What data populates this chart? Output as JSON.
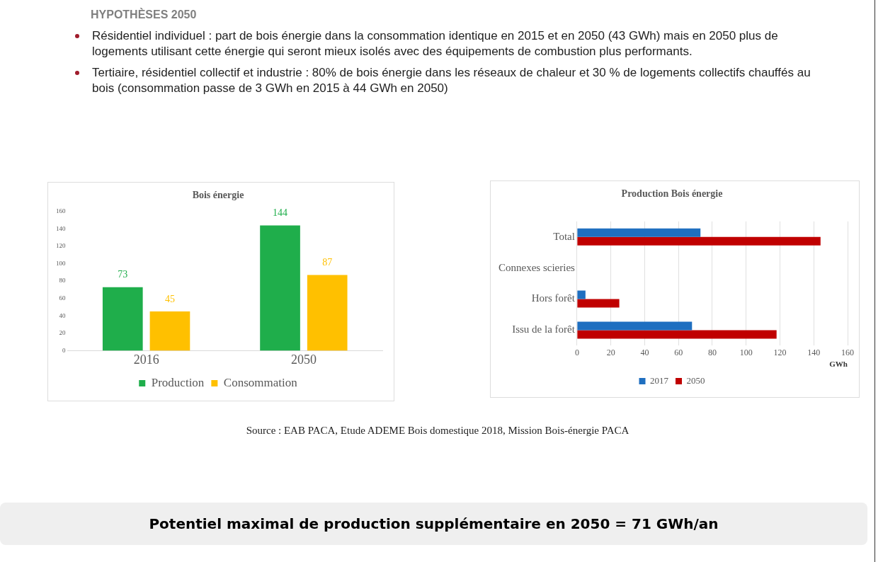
{
  "chart_data": [
    {
      "type": "other",
      "title": "HYPOTHÈSES 2050",
      "annotations": [
        "Résidentiel individuel : part de bois énergie dans la consommation identique en 2015 et en 2050 (43 GWh) mais en 2050 plus de logements utilisant cette énergie qui seront mieux isolés avec des équipements de combustion plus performants.",
        "Tertiaire, résidentiel collectif et industrie : 80% de bois énergie dans les réseaux de chaleur et 30 % de logements collectifs chauffés au bois (consommation passe de 3 GWh en 2015 à 44 GWh en 2050)"
      ]
    },
    {
      "type": "bar",
      "title": "Bois énergie",
      "categories": [
        "2016",
        "2050"
      ],
      "series": [
        {
          "name": "Production",
          "color": "#1fae4b",
          "values": [
            73,
            144
          ]
        },
        {
          "name": "Consommation",
          "color": "#ffc000",
          "values": [
            45,
            87
          ]
        }
      ],
      "ylim": [
        0,
        160
      ],
      "yticks": [
        0,
        20,
        40,
        60,
        80,
        100,
        120,
        140,
        160
      ],
      "grid": false,
      "legend": "bottom",
      "data_labels": true
    },
    {
      "type": "bar",
      "orientation": "horizontal",
      "title": "Production Bois énergie",
      "xlabel": "GWh",
      "categories": [
        "Total",
        "Connexes scieries",
        "Hors forêt",
        "Issu de la forêt"
      ],
      "series": [
        {
          "name": "2017",
          "color": "#1f6fc0",
          "values": [
            73,
            null,
            5,
            68
          ]
        },
        {
          "name": "2050",
          "color": "#c00000",
          "values": [
            144,
            null,
            25,
            118
          ]
        }
      ],
      "xlim": [
        0,
        160
      ],
      "xticks": [
        0,
        20,
        40,
        60,
        80,
        100,
        120,
        140,
        160
      ],
      "grid": "x",
      "legend": "bottom"
    },
    {
      "type": "other",
      "annotations": [
        "Source : EAB PACA, Etude ADEME Bois domestique 2018, Mission Bois-énergie PACA",
        "Potentiel maximal de production supplémentaire en 2050  = 71 GWh/an"
      ]
    }
  ]
}
